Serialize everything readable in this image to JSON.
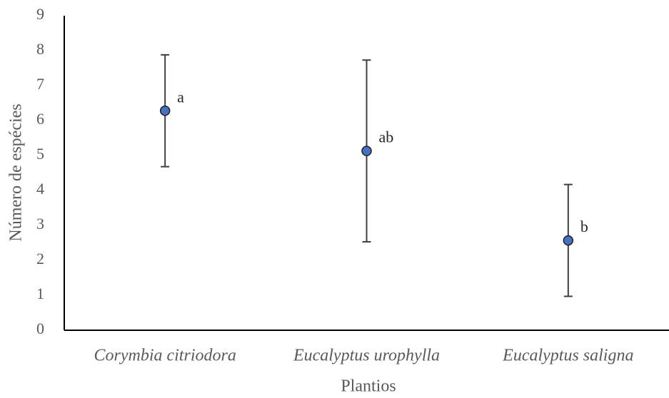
{
  "chart_data": {
    "type": "errorbar",
    "x_label": "Plantios",
    "y_label": "Número de espécies",
    "categories": [
      "Corymbia citriodora",
      "Eucalyptus urophylla",
      "Eucalyptus saligna"
    ],
    "values": [
      6.28,
      5.13,
      2.57
    ],
    "errors": [
      1.6,
      2.6,
      1.6
    ],
    "annotations": [
      "a",
      "ab",
      "b"
    ],
    "color": "#4472c4",
    "ylim": [
      0,
      9
    ],
    "yticks": [
      0,
      1,
      2,
      3,
      4,
      5,
      6,
      7,
      8,
      9
    ],
    "grid": false
  }
}
